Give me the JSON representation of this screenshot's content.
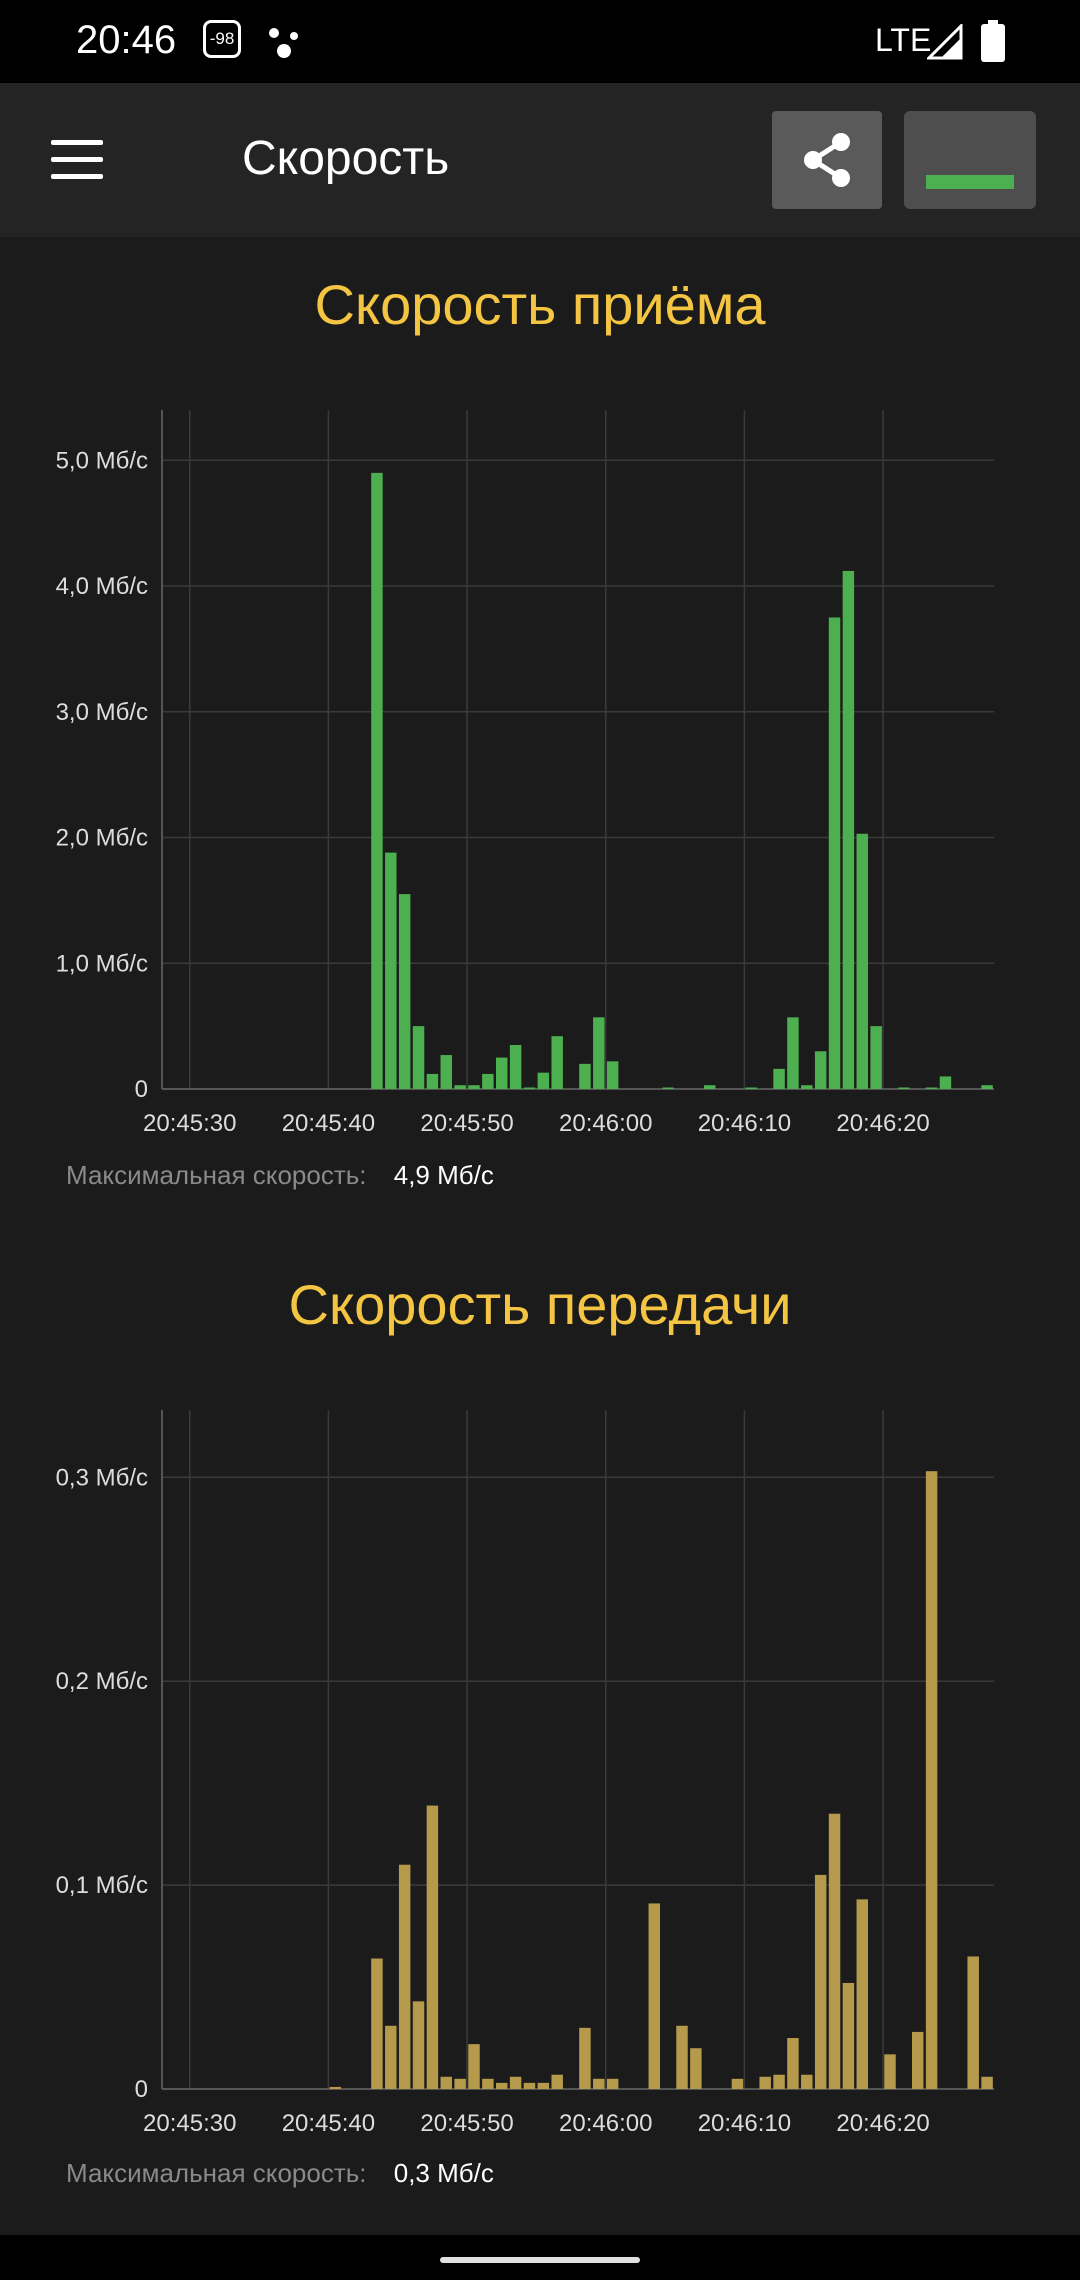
{
  "status_bar": {
    "time": "20:46",
    "badge": "-98",
    "network": "LTE",
    "icons": [
      "assistant-dots-icon",
      "signal-icon",
      "battery-icon"
    ]
  },
  "app_bar": {
    "title": "Скорость",
    "icons": [
      "menu-icon",
      "share-icon",
      "graph-mode-icon"
    ]
  },
  "colors": {
    "download": "#4caf50",
    "upload": "#b59a4c",
    "title": "#f4c542"
  },
  "download": {
    "title": "Скорость приёма",
    "max_label": "Максимальная скорость:",
    "max_value": "4,9 Мб/с"
  },
  "upload": {
    "title": "Скорость передачи",
    "max_label": "Максимальная скорость:",
    "max_value": "0,3 Мб/с"
  },
  "chart_data": [
    {
      "type": "bar",
      "title": "Скорость приёма",
      "x_start": "20:45:28",
      "x_step_seconds": 1,
      "x_ticks": [
        "20:45:30",
        "20:45:40",
        "20:45:50",
        "20:46:00",
        "20:46:10",
        "20:46:20"
      ],
      "y_ticks": [
        "0",
        "1,0 Мб/с",
        "2,0 Мб/с",
        "3,0 Мб/с",
        "4,0 Мб/с",
        "5,0 Мб/с"
      ],
      "y_tick_values": [
        0,
        1,
        2,
        3,
        4,
        5
      ],
      "ylim": [
        0,
        5.4
      ],
      "unit": "Мб/с",
      "grid": true,
      "values": [
        0,
        0,
        0,
        0,
        0,
        0,
        0,
        0,
        0,
        0,
        0,
        0,
        0,
        0,
        0,
        4.9,
        1.88,
        1.55,
        0.5,
        0.12,
        0.27,
        0.03,
        0.03,
        0.12,
        0.25,
        0.35,
        0.01,
        0.13,
        0.42,
        0,
        0.2,
        0.57,
        0.22,
        0,
        0,
        0,
        0.01,
        0,
        0,
        0.03,
        0,
        0,
        0.01,
        0,
        0.16,
        0.57,
        0.03,
        0.3,
        3.75,
        4.12,
        2.03,
        0.5,
        0,
        0.01,
        0,
        0.01,
        0.1,
        0,
        0,
        0.03
      ]
    },
    {
      "type": "bar",
      "title": "Скорость передачи",
      "x_start": "20:45:28",
      "x_step_seconds": 1,
      "x_ticks": [
        "20:45:30",
        "20:45:40",
        "20:45:50",
        "20:46:00",
        "20:46:10",
        "20:46:20"
      ],
      "y_ticks": [
        "0",
        "0,1 Мб/с",
        "0,2 Мб/с",
        "0,3 Мб/с"
      ],
      "y_tick_values": [
        0,
        0.1,
        0.2,
        0.3
      ],
      "ylim": [
        0,
        0.333
      ],
      "unit": "Мб/с",
      "grid": true,
      "values": [
        0,
        0,
        0,
        0,
        0,
        0,
        0,
        0,
        0,
        0,
        0,
        0,
        0.001,
        0,
        0,
        0.064,
        0.031,
        0.11,
        0.043,
        0.139,
        0.006,
        0.005,
        0.022,
        0.005,
        0.003,
        0.006,
        0.003,
        0.003,
        0.007,
        0,
        0.03,
        0.005,
        0.005,
        0,
        0,
        0.091,
        0,
        0.031,
        0.02,
        0,
        0,
        0.005,
        0,
        0.006,
        0.007,
        0.025,
        0.007,
        0.105,
        0.135,
        0.052,
        0.093,
        0,
        0.017,
        0,
        0.028,
        0.303,
        0,
        0,
        0.065,
        0.006
      ]
    }
  ]
}
